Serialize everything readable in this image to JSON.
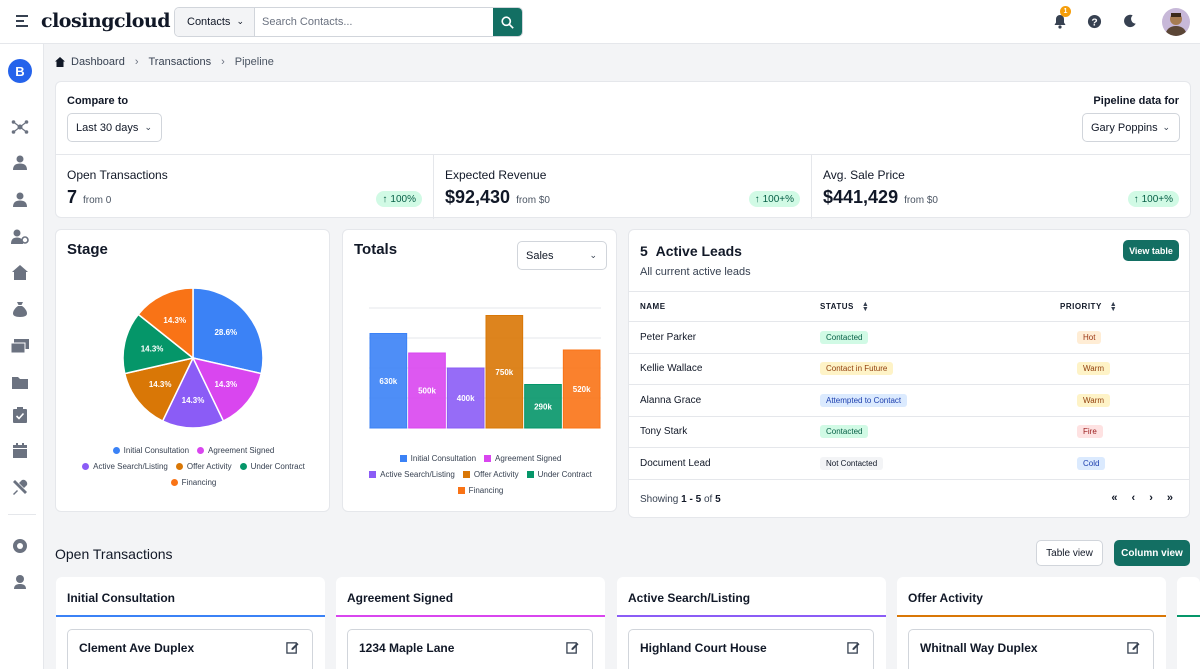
{
  "brand": {
    "logo": "closingcloud",
    "accent": "#136f63"
  },
  "search": {
    "scope": "Contacts",
    "placeholder": "Search Contacts..."
  },
  "header": {
    "notification_count": "1"
  },
  "sidebar": {
    "avatar_letter": "B"
  },
  "breadcrumb": {
    "items": [
      "Dashboard",
      "Transactions",
      "Pipeline"
    ]
  },
  "filters": {
    "compare_label": "Compare to",
    "compare_value": "Last 30 days",
    "pipeline_label": "Pipeline data for",
    "pipeline_value": "Gary Poppins"
  },
  "stats": [
    {
      "title": "Open Transactions",
      "value": "7",
      "from": "from 0",
      "change": "100%"
    },
    {
      "title": "Expected Revenue",
      "value": "$92,430",
      "from": "from $0",
      "change": "100+%"
    },
    {
      "title": "Avg. Sale Price",
      "value": "$441,429",
      "from": "from $0",
      "change": "100+%"
    }
  ],
  "stage_panel": {
    "title": "Stage"
  },
  "totals_panel": {
    "title": "Totals",
    "select_value": "Sales"
  },
  "chart_data": [
    {
      "type": "pie",
      "title": "Stage",
      "categories": [
        "Initial Consultation",
        "Agreement Signed",
        "Active Search/Listing",
        "Offer Activity",
        "Under Contract",
        "Financing"
      ],
      "values": [
        28.6,
        14.3,
        14.3,
        14.3,
        14.3,
        14.3
      ],
      "labels": [
        "28.6%",
        "14.3%",
        "14.3%",
        "14.3%",
        "14.3%",
        "14.3%"
      ],
      "colors": [
        "#3b82f6",
        "#d946ef",
        "#8b5cf6",
        "#d97706",
        "#059669",
        "#f97316"
      ],
      "legend": "bottom"
    },
    {
      "type": "bar",
      "title": "Totals",
      "categories": [
        "Initial Consultation",
        "Agreement Signed",
        "Active Search/Listing",
        "Offer Activity",
        "Under Contract",
        "Financing"
      ],
      "values": [
        630,
        500,
        400,
        750,
        290,
        520
      ],
      "labels": [
        "630k",
        "500k",
        "400k",
        "750k",
        "290k",
        "520k"
      ],
      "colors": [
        "#3b82f6",
        "#d946ef",
        "#8b5cf6",
        "#d97706",
        "#059669",
        "#f97316"
      ],
      "ylim": [
        0,
        800
      ],
      "grid": true,
      "legend": "bottom"
    }
  ],
  "leads": {
    "count": "5",
    "title": "Active Leads",
    "subtitle": "All current active leads",
    "view_table": "View table",
    "columns": [
      "NAME",
      "STATUS",
      "PRIORITY"
    ],
    "rows": [
      {
        "name": "Peter Parker",
        "status": "Contacted",
        "priority": "Hot"
      },
      {
        "name": "Kellie Wallace",
        "status": "Contact in Future",
        "priority": "Warm"
      },
      {
        "name": "Alanna Grace",
        "status": "Attempted to Contact",
        "priority": "Warm"
      },
      {
        "name": "Tony Stark",
        "status": "Contacted",
        "priority": "Fire"
      },
      {
        "name": "Document Lead",
        "status": "Not Contacted",
        "priority": "Cold"
      }
    ],
    "pager": {
      "showing": "Showing",
      "range": "1 - 5",
      "of": "of",
      "total": "5"
    }
  },
  "open_transactions": {
    "title": "Open Transactions",
    "table_view": "Table view",
    "column_view": "Column view",
    "columns": [
      {
        "title": "Initial Consultation",
        "color": "#3b82f6",
        "first_deal": "Clement Ave Duplex"
      },
      {
        "title": "Agreement Signed",
        "color": "#d946ef",
        "first_deal": "1234 Maple Lane"
      },
      {
        "title": "Active Search/Listing",
        "color": "#8b5cf6",
        "first_deal": "Highland Court House"
      },
      {
        "title": "Offer Activity",
        "color": "#d97706",
        "first_deal": "Whitnall Way Duplex"
      }
    ]
  }
}
